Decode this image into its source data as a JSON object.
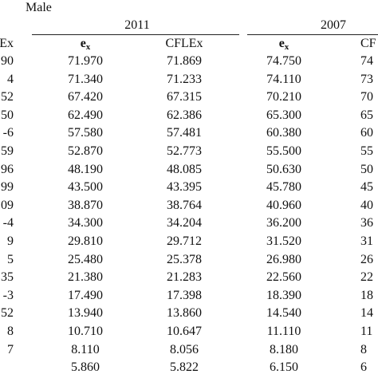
{
  "table": {
    "group": "Male",
    "years": [
      "2011",
      "2007"
    ],
    "header": {
      "left": "Ex",
      "ex": {
        "main": "e",
        "sub": "x"
      },
      "cflex": "CFLEx",
      "right": "CF"
    },
    "rows": [
      {
        "left": "90",
        "ex2011": "71.970",
        "cflex2011": "71.869",
        "ex2007": "74.750",
        "right": "74"
      },
      {
        "left": "4",
        "ex2011": "71.340",
        "cflex2011": "71.233",
        "ex2007": "74.110",
        "right": "73"
      },
      {
        "left": "52",
        "ex2011": "67.420",
        "cflex2011": "67.315",
        "ex2007": "70.210",
        "right": "70"
      },
      {
        "left": "50",
        "ex2011": "62.490",
        "cflex2011": "62.386",
        "ex2007": "65.300",
        "right": "65"
      },
      {
        "left": "-6",
        "ex2011": "57.580",
        "cflex2011": "57.481",
        "ex2007": "60.380",
        "right": "60"
      },
      {
        "left": "59",
        "ex2011": "52.870",
        "cflex2011": "52.773",
        "ex2007": "55.500",
        "right": "55"
      },
      {
        "left": "96",
        "ex2011": "48.190",
        "cflex2011": "48.085",
        "ex2007": "50.630",
        "right": "50"
      },
      {
        "left": "99",
        "ex2011": "43.500",
        "cflex2011": "43.395",
        "ex2007": "45.780",
        "right": "45"
      },
      {
        "left": "09",
        "ex2011": "38.870",
        "cflex2011": "38.764",
        "ex2007": "40.960",
        "right": "40"
      },
      {
        "left": "-4",
        "ex2011": "34.300",
        "cflex2011": "34.204",
        "ex2007": "36.200",
        "right": "36"
      },
      {
        "left": "9",
        "ex2011": "29.810",
        "cflex2011": "29.712",
        "ex2007": "31.520",
        "right": "31"
      },
      {
        "left": "5",
        "ex2011": "25.480",
        "cflex2011": "25.378",
        "ex2007": "26.980",
        "right": "26"
      },
      {
        "left": "35",
        "ex2011": "21.380",
        "cflex2011": "21.283",
        "ex2007": "22.560",
        "right": "22"
      },
      {
        "left": "-3",
        "ex2011": "17.490",
        "cflex2011": "17.398",
        "ex2007": "18.390",
        "right": "18"
      },
      {
        "left": "52",
        "ex2011": "13.940",
        "cflex2011": "13.860",
        "ex2007": "14.540",
        "right": "14"
      },
      {
        "left": "8",
        "ex2011": "10.710",
        "cflex2011": "10.647",
        "ex2007": "11.110",
        "right": "11"
      },
      {
        "left": "7",
        "ex2011": "8.110",
        "cflex2011": "8.056",
        "ex2007": "8.180",
        "right": "8"
      },
      {
        "ex2011": "5.860",
        "cflex2011": "5.822",
        "ex2007": "6.150",
        "right": "6"
      }
    ]
  }
}
